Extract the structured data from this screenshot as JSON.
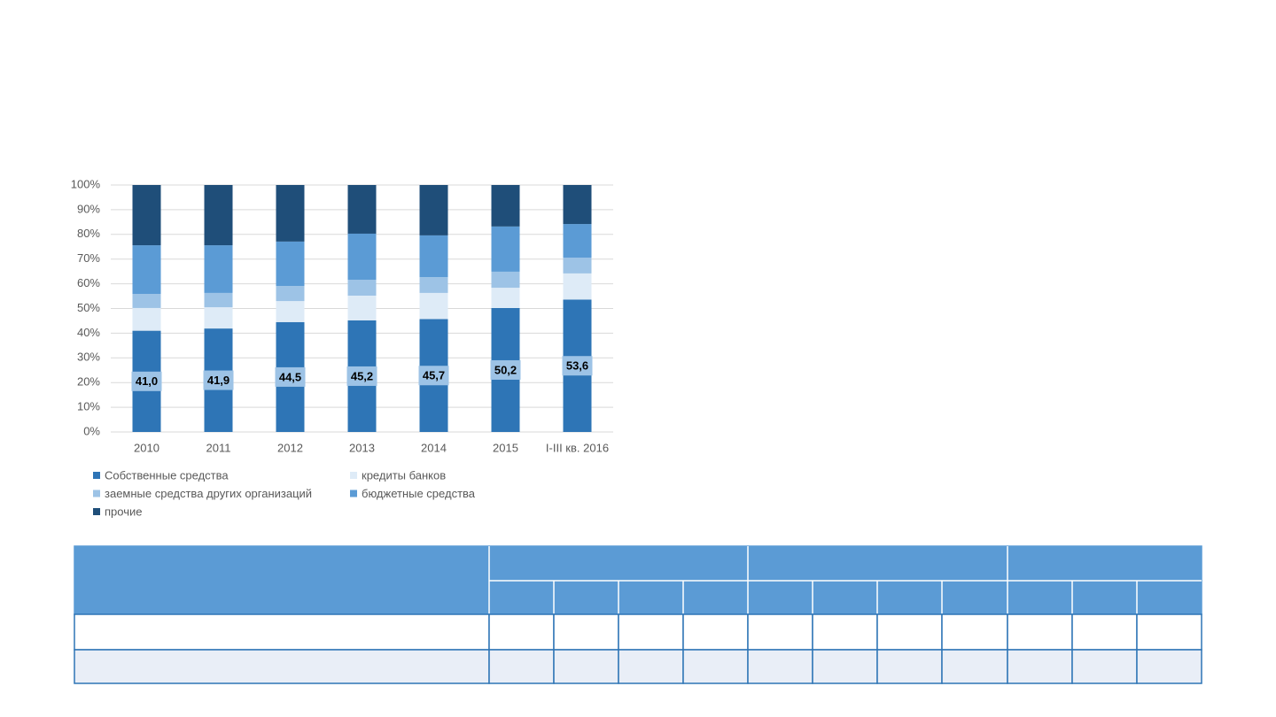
{
  "chart_data": {
    "type": "stacked_bar",
    "categories": [
      "2010",
      "2011",
      "2012",
      "2013",
      "2014",
      "2015",
      "I-III кв. 2016"
    ],
    "series": [
      {
        "name": "Собственные средства",
        "color": "#2e75b6",
        "values": [
          41.0,
          41.9,
          44.5,
          45.2,
          45.7,
          50.2,
          53.6
        ],
        "value_labels": [
          "41,0",
          "41,9",
          "44,5",
          "45,2",
          "45,7",
          "50,2",
          "53,6"
        ]
      },
      {
        "name": "кредиты банков",
        "color": "#deebf7",
        "values": [
          9.2,
          8.6,
          8.5,
          10.0,
          10.6,
          8.2,
          10.6
        ]
      },
      {
        "name": "заемные средства других организаций",
        "color": "#9dc3e6",
        "values": [
          5.7,
          5.8,
          6.1,
          6.4,
          6.4,
          6.5,
          6.4
        ]
      },
      {
        "name": "бюджетные средства",
        "color": "#5b9bd5",
        "values": [
          19.7,
          19.3,
          18.0,
          18.7,
          16.9,
          18.3,
          13.6
        ]
      },
      {
        "name": "прочие",
        "color": "#1f4e79",
        "values": [
          24.4,
          24.4,
          22.9,
          19.7,
          20.4,
          16.8,
          15.8
        ]
      }
    ],
    "ylim": [
      0,
      100
    ],
    "yticks": [
      {
        "value": 0,
        "label": "0%"
      },
      {
        "value": 10,
        "label": "10%"
      },
      {
        "value": 20,
        "label": "20%"
      },
      {
        "value": 30,
        "label": "30%"
      },
      {
        "value": 40,
        "label": "40%"
      },
      {
        "value": 50,
        "label": "50%"
      },
      {
        "value": 60,
        "label": "60%"
      },
      {
        "value": 70,
        "label": "70%"
      },
      {
        "value": 80,
        "label": "80%"
      },
      {
        "value": 90,
        "label": "90%"
      },
      {
        "value": 100,
        "label": "100%"
      }
    ],
    "grid": true,
    "legend": "bottom"
  }
}
